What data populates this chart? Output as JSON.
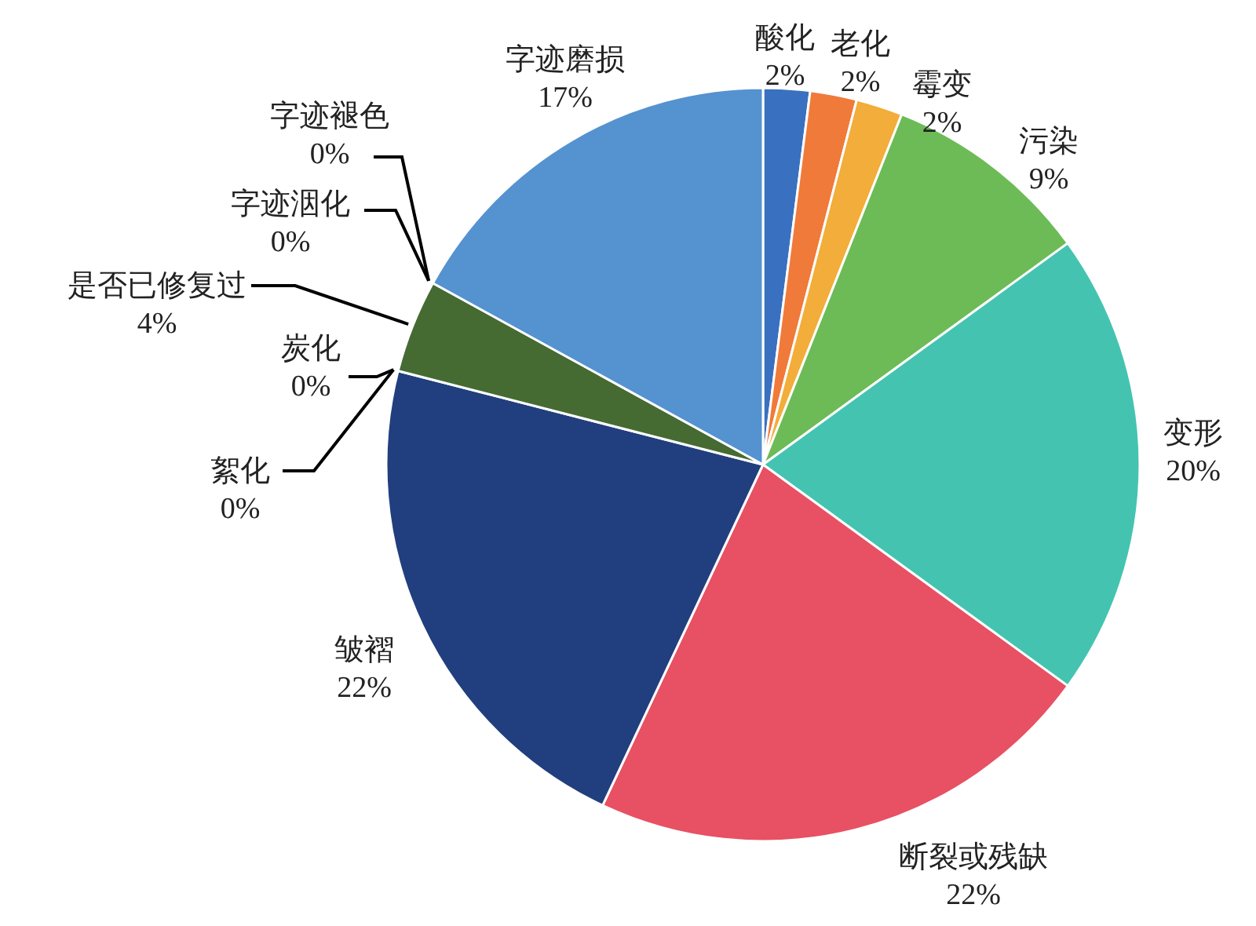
{
  "chart_data": {
    "type": "pie",
    "categories": [
      "酸化",
      "老化",
      "霉变",
      "污染",
      "变形",
      "断裂或残缺",
      "皱褶",
      "絮化",
      "炭化",
      "是否已修复过",
      "字迹洇化",
      "字迹褪色",
      "字迹磨损"
    ],
    "values": [
      2,
      2,
      2,
      9,
      20,
      22,
      22,
      0,
      0,
      4,
      0,
      0,
      17
    ],
    "value_labels": [
      "2%",
      "2%",
      "2%",
      "9%",
      "20%",
      "22%",
      "22%",
      "0%",
      "0%",
      "4%",
      "0%",
      "0%",
      "17%"
    ],
    "colors": [
      "#3a70c0",
      "#f07a3a",
      "#f2ad3a",
      "#6dbb57",
      "#44c4b0",
      "#e85063",
      "#213f7e",
      null,
      null,
      "#456b32",
      null,
      null,
      "#5592d0"
    ]
  }
}
